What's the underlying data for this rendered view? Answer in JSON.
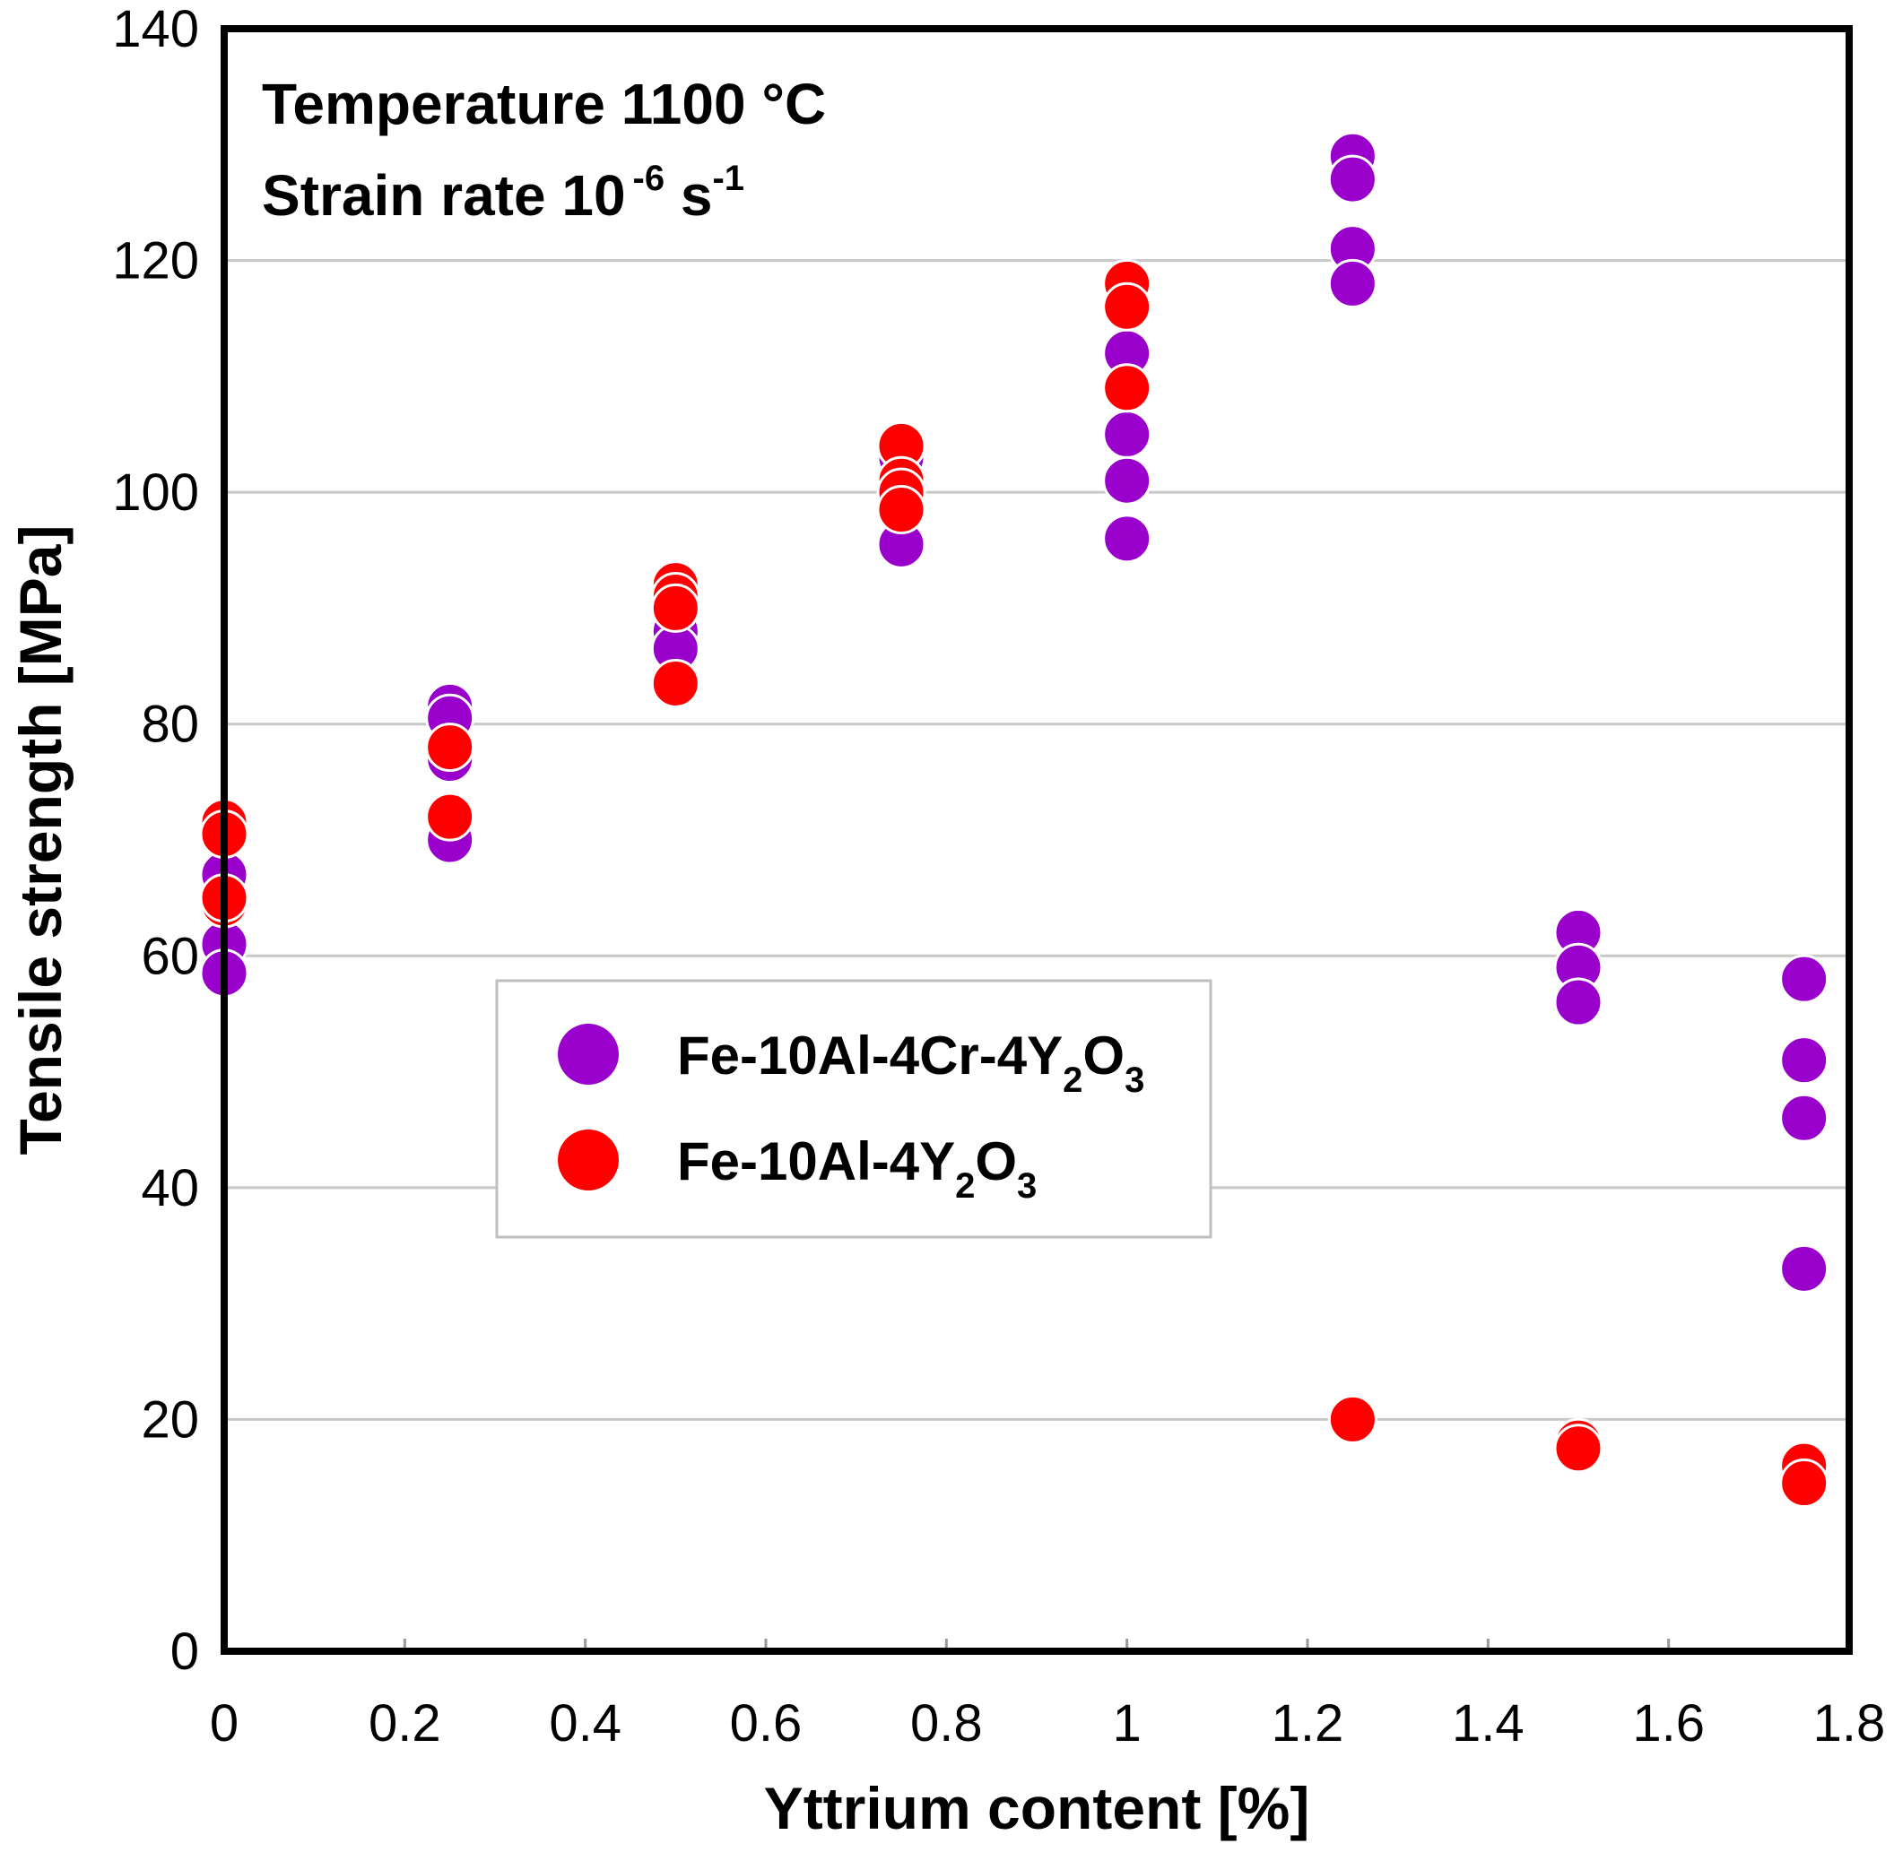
{
  "chart_data": {
    "type": "scatter",
    "xlabel": "Yttrium content  [%]",
    "ylabel": "Tensile strength  [MPa]",
    "xlim": [
      0,
      1.8
    ],
    "ylim": [
      0,
      140
    ],
    "x_ticks": [
      "0",
      "0.2",
      "0.4",
      "0.6",
      "0.8",
      "1",
      "1.2",
      "1.4",
      "1.6",
      "1.8"
    ],
    "y_ticks": [
      "0",
      "20",
      "40",
      "60",
      "80",
      "100",
      "120",
      "140"
    ],
    "grid": "horizontal",
    "legend_position": "center-left",
    "annotations": {
      "temperature": "Temperature 1100 °C",
      "strain_prefix": "Strain rate 10",
      "strain_exp": "-6",
      "strain_unit": " s",
      "strain_unit_exp": "-1"
    },
    "series": [
      {
        "name": "Fe-10Al-4Cr-4Y2O3",
        "legend_parts": [
          "Fe-10Al-4Cr-4Y",
          "2",
          "O",
          "3"
        ],
        "color": "#9900cc",
        "points": [
          [
            0,
            67
          ],
          [
            0,
            61
          ],
          [
            0,
            58.5
          ],
          [
            0.25,
            81.5
          ],
          [
            0.25,
            80.5
          ],
          [
            0.25,
            77
          ],
          [
            0.25,
            70
          ],
          [
            0.5,
            88
          ],
          [
            0.5,
            86.5
          ],
          [
            0.75,
            103
          ],
          [
            0.75,
            95.5
          ],
          [
            1.0,
            112
          ],
          [
            1.0,
            105
          ],
          [
            1.0,
            101
          ],
          [
            1.0,
            96
          ],
          [
            1.25,
            129
          ],
          [
            1.25,
            127
          ],
          [
            1.25,
            121
          ],
          [
            1.25,
            118
          ],
          [
            1.5,
            62
          ],
          [
            1.5,
            59
          ],
          [
            1.5,
            56
          ],
          [
            1.75,
            58
          ],
          [
            1.75,
            51
          ],
          [
            1.75,
            46
          ],
          [
            1.75,
            33
          ]
        ]
      },
      {
        "name": "Fe-10Al-4Y2O3",
        "legend_parts": [
          "Fe-10Al-4Y",
          "2",
          "O",
          "3"
        ],
        "color": "#ff0000",
        "points": [
          [
            0,
            71.5
          ],
          [
            0,
            70.5
          ],
          [
            0,
            64.5
          ],
          [
            0,
            65
          ],
          [
            0.25,
            78
          ],
          [
            0.25,
            72
          ],
          [
            0.5,
            92
          ],
          [
            0.5,
            91
          ],
          [
            0.5,
            90
          ],
          [
            0.5,
            83.5
          ],
          [
            0.75,
            104
          ],
          [
            0.75,
            101
          ],
          [
            0.75,
            100
          ],
          [
            0.75,
            98.5
          ],
          [
            1.0,
            118
          ],
          [
            1.0,
            116
          ],
          [
            1.0,
            109
          ],
          [
            1.25,
            20
          ],
          [
            1.5,
            18
          ],
          [
            1.5,
            17.5
          ],
          [
            1.75,
            16
          ],
          [
            1.75,
            14.5
          ]
        ]
      }
    ]
  }
}
